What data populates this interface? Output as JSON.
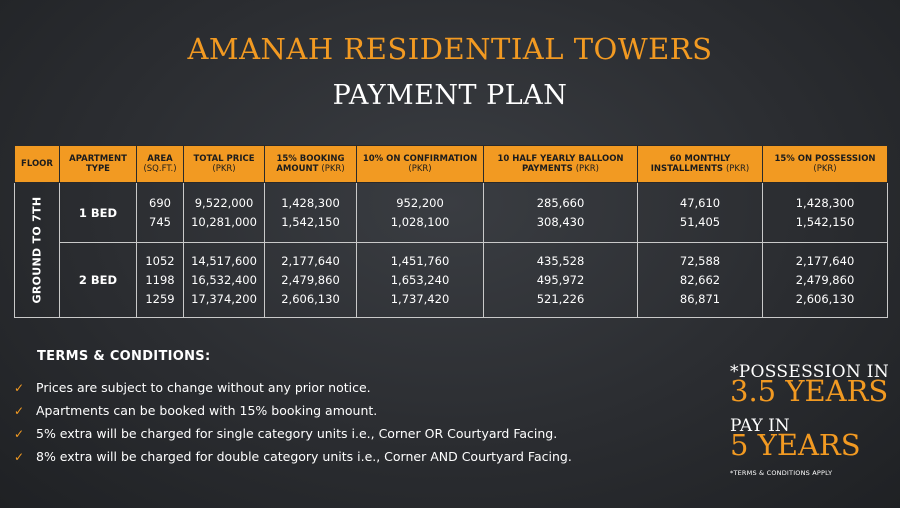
{
  "header": {
    "title": "AMANAH RESIDENTIAL TOWERS",
    "subtitle": "PAYMENT PLAN"
  },
  "table": {
    "headers": [
      {
        "label": "FLOOR",
        "unit": ""
      },
      {
        "label": "APARTMENT TYPE",
        "unit": ""
      },
      {
        "label": "AREA",
        "unit": "(SQ.FT.)"
      },
      {
        "label": "TOTAL PRICE",
        "unit": "(PKR)"
      },
      {
        "label": "15% BOOKING AMOUNT",
        "unit": "(PKR)"
      },
      {
        "label": "10% ON CONFIRMATION",
        "unit": "(PKR)"
      },
      {
        "label": "10 HALF YEARLY BALLOON PAYMENTS",
        "unit": "(PKR)"
      },
      {
        "label": "60 MONTHLY INSTALLMENTS",
        "unit": "(PKR)"
      },
      {
        "label": "15% ON POSSESSION",
        "unit": "(PKR)"
      }
    ],
    "floor": "GROUND TO 7TH",
    "groups": [
      {
        "type": "1 BED",
        "area": [
          "690",
          "745"
        ],
        "total_price": [
          "9,522,000",
          "10,281,000"
        ],
        "booking": [
          "1,428,300",
          "1,542,150"
        ],
        "confirmation": [
          "952,200",
          "1,028,100"
        ],
        "balloon": [
          "285,660",
          "308,430"
        ],
        "monthly": [
          "47,610",
          "51,405"
        ],
        "possession": [
          "1,428,300",
          "1,542,150"
        ]
      },
      {
        "type": "2 BED",
        "area": [
          "1052",
          "1198",
          "1259"
        ],
        "total_price": [
          "14,517,600",
          "16,532,400",
          "17,374,200"
        ],
        "booking": [
          "2,177,640",
          "2,479,860",
          "2,606,130"
        ],
        "confirmation": [
          "1,451,760",
          "1,653,240",
          "1,737,420"
        ],
        "balloon": [
          "435,528",
          "495,972",
          "521,226"
        ],
        "monthly": [
          "72,588",
          "82,662",
          "86,871"
        ],
        "possession": [
          "2,177,640",
          "2,479,860",
          "2,606,130"
        ]
      }
    ]
  },
  "terms": {
    "heading": "TERMS & CONDITIONS:",
    "check_icon": "✓",
    "items": [
      "Prices are subject to change without any prior notice.",
      "Apartments can be booked with 15% booking amount.",
      "5% extra will be charged for single category units i.e., Corner OR Courtyard Facing.",
      "8% extra will be charged for double category units i.e., Corner AND Courtyard Facing."
    ]
  },
  "promo": {
    "possession_label": "*POSSESSION IN",
    "possession_value": "3.5 YEARS",
    "pay_label": "PAY IN",
    "pay_value": "5 YEARS",
    "note": "*TERMS & CONDITIONS APPLY"
  },
  "colors": {
    "accent": "#f29a22",
    "background": "#2b2d31",
    "text": "#ffffff"
  }
}
